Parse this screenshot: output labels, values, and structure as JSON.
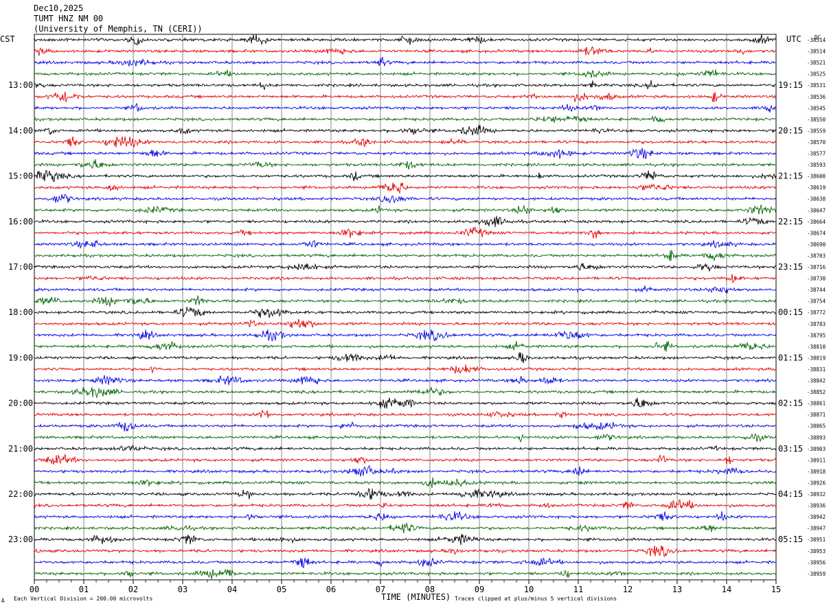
{
  "header": {
    "line1": "Dec10,2025",
    "line2": "TUMT HNZ NM 00",
    "line3": "(University of Memphis, TN (CERI))"
  },
  "chart_data": {
    "type": "line",
    "title": "TUMT HNZ NM 00",
    "date": "Dec10,2025",
    "left_axis_label": "CST",
    "right_axis_label": "UTC",
    "dc_label": "DC",
    "xlabel": "TIME (MINUTES)",
    "xlim": [
      0,
      15
    ],
    "x_ticks": [
      "00",
      "01",
      "02",
      "03",
      "04",
      "05",
      "06",
      "07",
      "08",
      "09",
      "10",
      "11",
      "12",
      "13",
      "14",
      "15"
    ],
    "left_hour_labels": [
      "13:00",
      "14:00",
      "15:00",
      "16:00",
      "17:00",
      "18:00",
      "19:00",
      "20:00",
      "21:00",
      "22:00",
      "23:00"
    ],
    "right_hour_labels": [
      "19:15",
      "20:15",
      "21:15",
      "22:15",
      "23:15",
      "00:15",
      "01:15",
      "02:15",
      "03:15",
      "04:15",
      "05:15"
    ],
    "trace_colors": [
      "#000000",
      "#e00000",
      "#0000e0",
      "#006400"
    ],
    "trace_count": 48,
    "dc_offsets": [
      "-38514",
      "-38514",
      "-38521",
      "-38525",
      "-38531",
      "-38536",
      "-38545",
      "-38550",
      "-38559",
      "-38570",
      "-38577",
      "-38593",
      "-38600",
      "-38619",
      "-38638",
      "-38647",
      "-38664",
      "-38674",
      "-38690",
      "-38703",
      "-38716",
      "-38730",
      "-38744",
      "-38754",
      "-38772",
      "-38783",
      "-38795",
      "-38810",
      "-38819",
      "-38831",
      "-38842",
      "-38852",
      "-38861",
      "-38871",
      "-38865",
      "-38893",
      "-38903",
      "-38911",
      "-38918",
      "-38926",
      "-38932",
      "-38936",
      "-38942",
      "-38947",
      "-38951",
      "-38953",
      "-38956",
      "-38959"
    ],
    "grid": true
  },
  "footer": {
    "scale_note": "Each Vertical Division =  200.00 microvolts",
    "clip_note": "Traces clipped at plus/minus 5 vertical divisions",
    "corner_mark": "A"
  }
}
